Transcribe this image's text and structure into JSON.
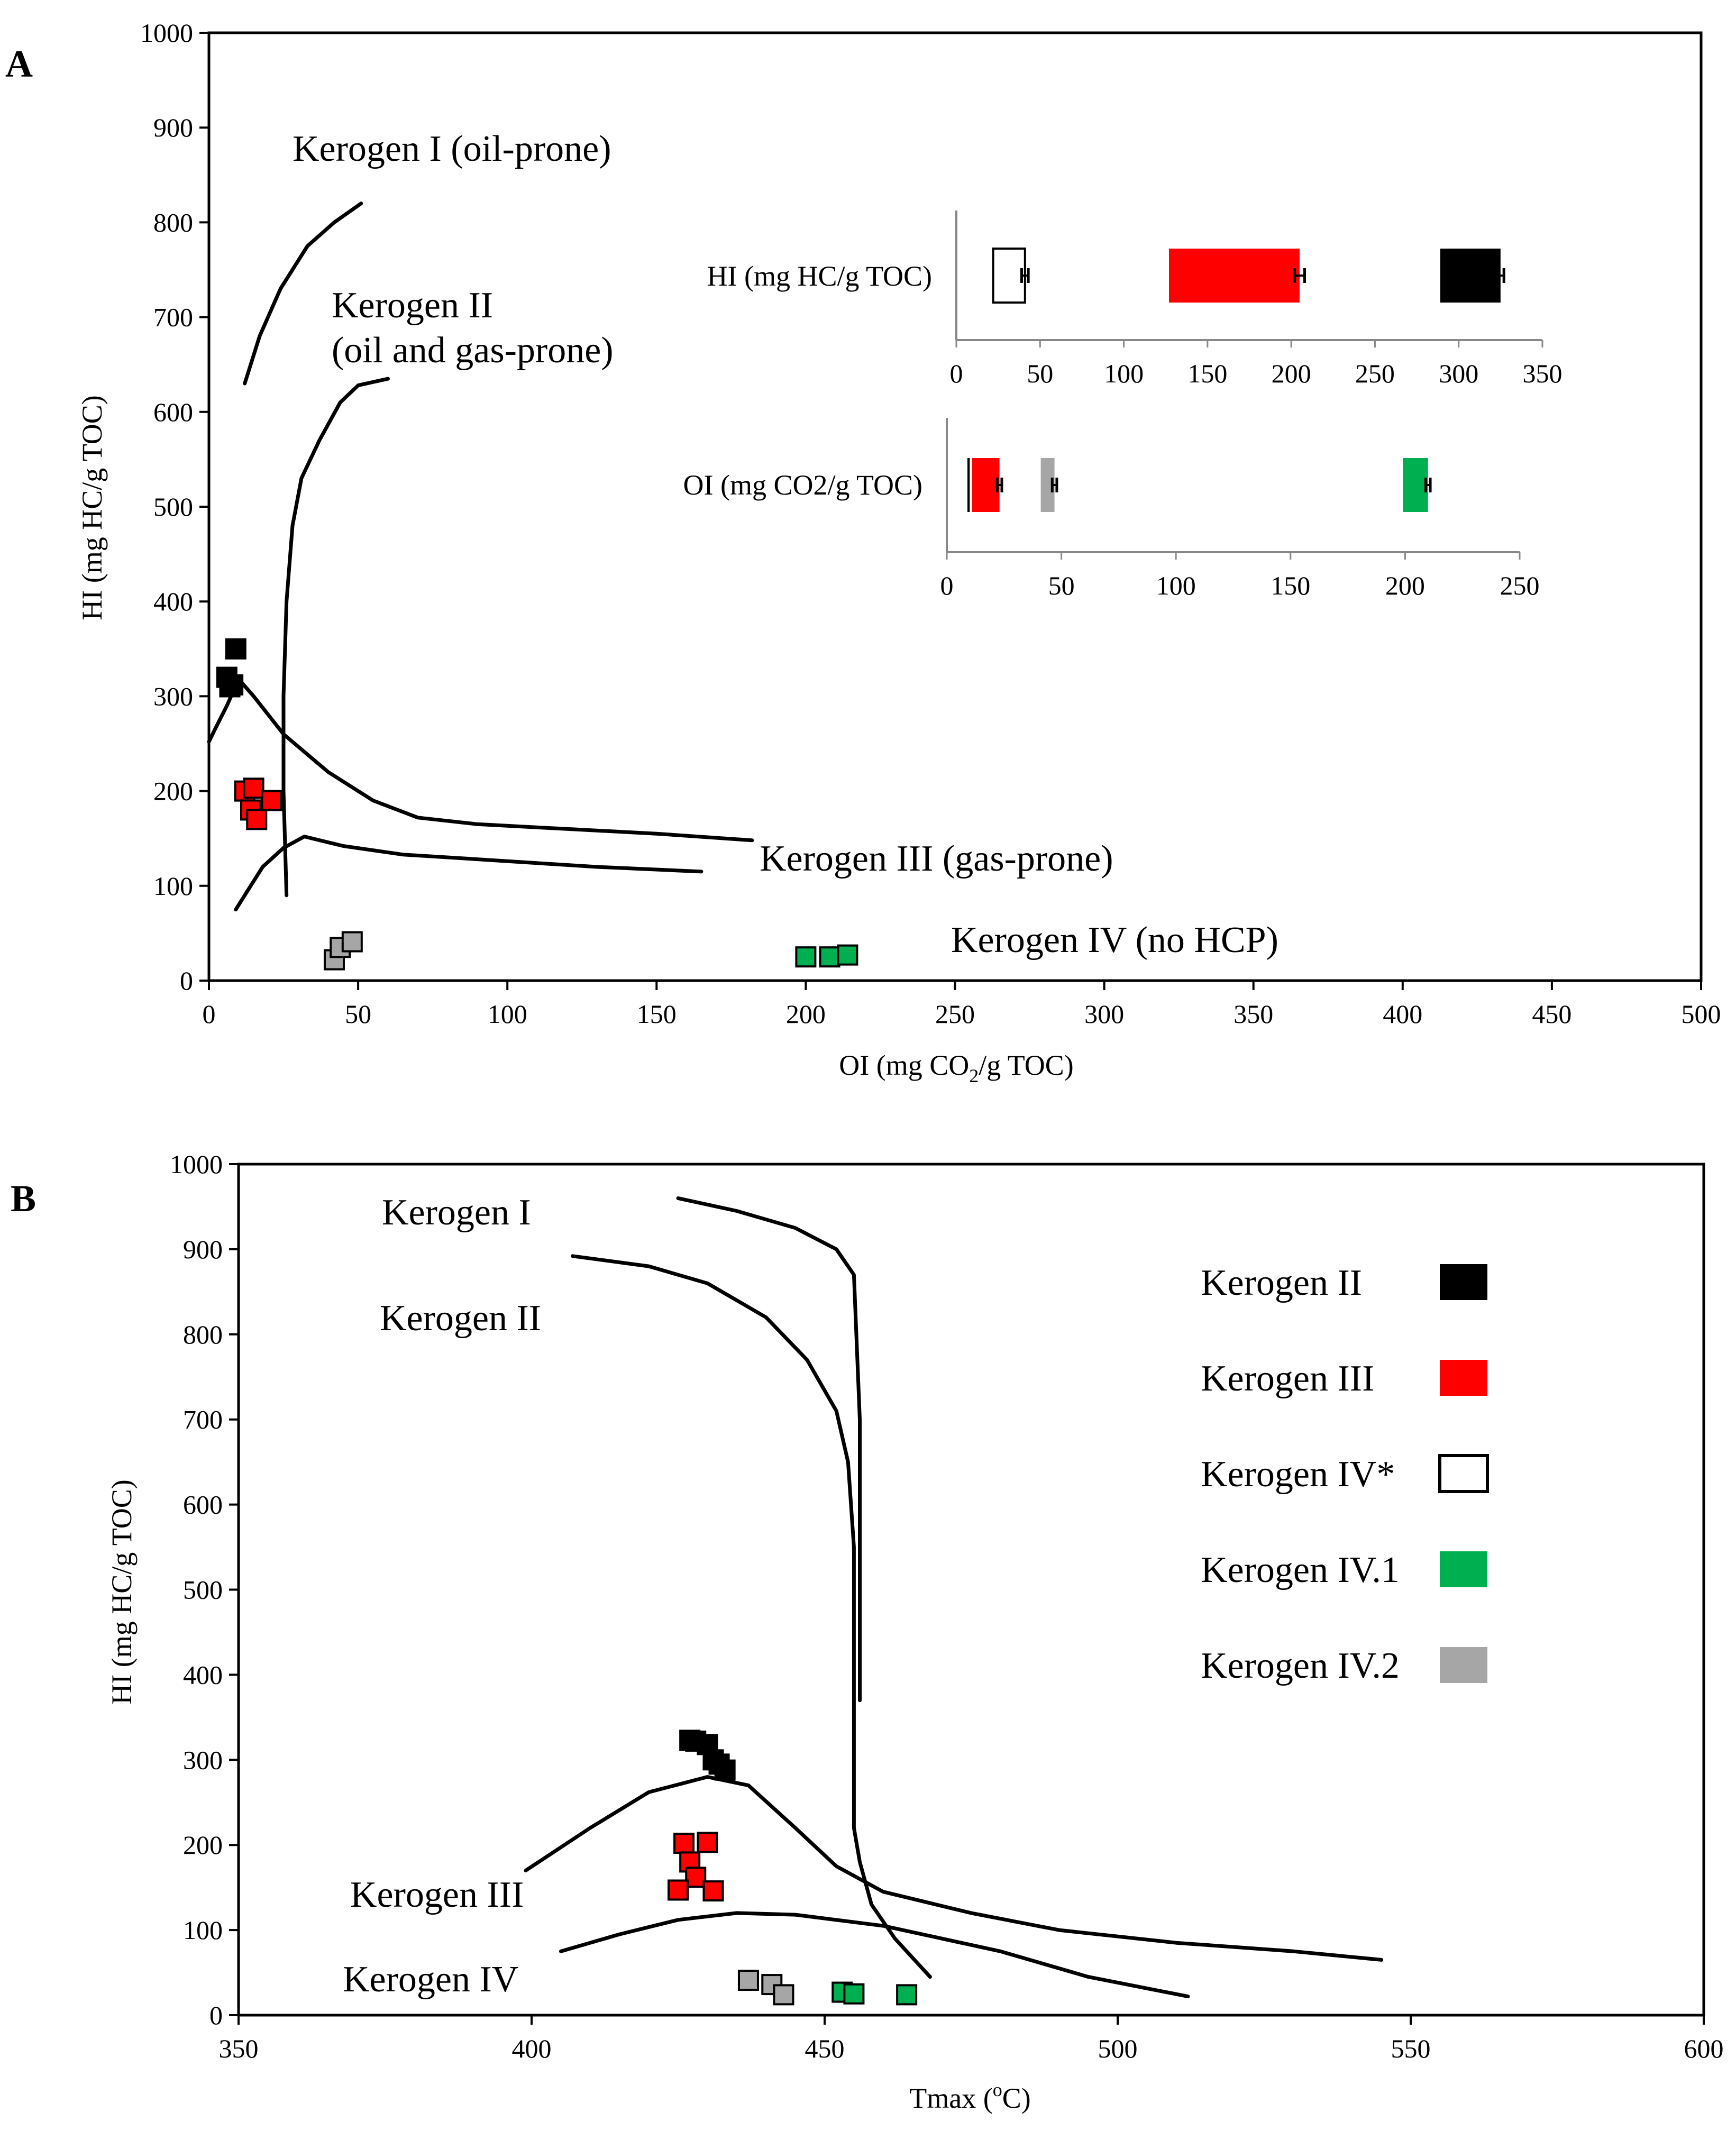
{
  "colors": {
    "kerogen_ii": "#000000",
    "kerogen_iii": "#ff0000",
    "kerogen_iv_star": "#ffffff",
    "kerogen_iv_1": "#00b050",
    "kerogen_iv_2": "#a6a6a6",
    "curve": "#000000"
  },
  "chart_data": [
    {
      "panel": "A",
      "type": "scatter",
      "title": "",
      "xlabel": "OI  (mg CO2/g TOC)",
      "xlabel_parts": {
        "pre": "OI  (mg CO",
        "sub": "2",
        "post": "/g TOC)"
      },
      "ylabel": "HI (mg HC/g TOC)",
      "xlim": [
        0,
        500
      ],
      "ylim": [
        0,
        1000
      ],
      "xticks": [
        0,
        50,
        100,
        150,
        200,
        250,
        300,
        350,
        400,
        450,
        500
      ],
      "yticks": [
        0,
        100,
        200,
        300,
        400,
        500,
        600,
        700,
        800,
        900,
        1000
      ],
      "grid": false,
      "series": [
        {
          "name": "Kerogen II",
          "color": "#000000",
          "points": [
            [
              9,
              350
            ],
            [
              6,
              320
            ],
            [
              8,
              312
            ],
            [
              7,
              310
            ]
          ]
        },
        {
          "name": "Kerogen III",
          "color": "#ff0000",
          "points": [
            [
              12,
              200
            ],
            [
              15,
              203
            ],
            [
              21,
              190
            ],
            [
              14,
              180
            ],
            [
              16,
              170
            ]
          ]
        },
        {
          "name": "Kerogen IV.1",
          "color": "#00b050",
          "points": [
            [
              200,
              25
            ],
            [
              208,
              25
            ],
            [
              214,
              27
            ]
          ]
        },
        {
          "name": "Kerogen IV.2",
          "color": "#a6a6a6",
          "points": [
            [
              42,
              22
            ],
            [
              44,
              35
            ],
            [
              48,
              41
            ]
          ]
        }
      ],
      "curves": [
        {
          "name": "Kerogen I boundary",
          "points": [
            [
              12,
              630
            ],
            [
              17,
              680
            ],
            [
              24,
              730
            ],
            [
              33,
              775
            ],
            [
              42,
              800
            ],
            [
              51,
              820
            ]
          ]
        },
        {
          "name": "Kerogen II boundary",
          "points": [
            [
              26,
              90
            ],
            [
              25,
              200
            ],
            [
              25,
              300
            ],
            [
              26,
              400
            ],
            [
              28,
              480
            ],
            [
              31,
              530
            ],
            [
              37,
              570
            ],
            [
              44,
              610
            ],
            [
              50,
              628
            ],
            [
              60,
              635
            ]
          ]
        },
        {
          "name": "Kerogen II-III upper boundary",
          "points": [
            [
              0,
              252
            ],
            [
              2,
              265
            ],
            [
              6,
              290
            ],
            [
              10,
              318
            ],
            [
              15,
              300
            ],
            [
              25,
              260
            ],
            [
              40,
              220
            ],
            [
              55,
              190
            ],
            [
              70,
              172
            ],
            [
              90,
              165
            ],
            [
              120,
              160
            ],
            [
              150,
              155
            ],
            [
              182,
              148
            ]
          ]
        },
        {
          "name": "Kerogen III lower boundary",
          "points": [
            [
              9,
              75
            ],
            [
              12,
              90
            ],
            [
              18,
              120
            ],
            [
              25,
              140
            ],
            [
              32,
              152
            ],
            [
              45,
              142
            ],
            [
              65,
              133
            ],
            [
              90,
              128
            ],
            [
              130,
              120
            ],
            [
              165,
              115
            ]
          ]
        }
      ],
      "annotations": [
        {
          "text": "Kerogen I (oil-prone)"
        },
        {
          "text": "Kerogen II"
        },
        {
          "text": "(oil and gas-prone)"
        },
        {
          "text": "Kerogen III (gas-prone)"
        },
        {
          "text": "Kerogen IV (no HCP)"
        }
      ],
      "insets": [
        {
          "type": "bar",
          "orientation": "horizontal",
          "category": "HI  (mg HC/g TOC)",
          "xlim": [
            0,
            350
          ],
          "xticks": [
            0,
            50,
            100,
            150,
            200,
            250,
            300,
            350
          ],
          "bars": [
            {
              "group": "Kerogen IV*",
              "start": 22,
              "end": 41,
              "err": 2,
              "color": "#ffffff"
            },
            {
              "group": "Kerogen III",
              "start": 127,
              "end": 205,
              "err": 3,
              "color": "#ff0000"
            },
            {
              "group": "Kerogen II",
              "start": 289,
              "end": 325,
              "err": 2,
              "color": "#000000"
            }
          ]
        },
        {
          "type": "bar",
          "orientation": "horizontal",
          "category": "OI (mg CO2/g TOC)",
          "xlim": [
            0,
            250
          ],
          "xticks": [
            0,
            50,
            100,
            150,
            200,
            250
          ],
          "bars": [
            {
              "group": "Kerogen II",
              "start": 9,
              "end": 10,
              "err": 0,
              "color": "#000000"
            },
            {
              "group": "Kerogen III",
              "start": 11,
              "end": 23,
              "err": 1,
              "color": "#ff0000"
            },
            {
              "group": "Kerogen IV.2",
              "start": 41,
              "end": 47,
              "err": 1,
              "color": "#a6a6a6"
            },
            {
              "group": "Kerogen IV.1",
              "start": 199,
              "end": 210,
              "err": 1,
              "color": "#00b050"
            }
          ]
        }
      ]
    },
    {
      "panel": "B",
      "type": "scatter",
      "title": "",
      "xlabel": "Tmax (°C)",
      "xlabel_parts": {
        "pre": "Tmax (",
        "sup": "o",
        "post": "C)"
      },
      "ylabel": "HI (mg HC/g TOC)",
      "xlim": [
        350,
        600
      ],
      "ylim": [
        0,
        1000
      ],
      "xticks": [
        350,
        400,
        450,
        500,
        550,
        600
      ],
      "yticks": [
        0,
        100,
        200,
        300,
        400,
        500,
        600,
        700,
        800,
        900,
        1000
      ],
      "grid": false,
      "legend": {
        "location": "right",
        "entries": [
          {
            "label": "Kerogen II",
            "color": "#000000"
          },
          {
            "label": "Kerogen III",
            "color": "#ff0000"
          },
          {
            "label": "Kerogen IV*",
            "color": "#ffffff"
          },
          {
            "label": "Kerogen IV.1",
            "color": "#00b050"
          },
          {
            "label": "Kerogen IV.2",
            "color": "#a6a6a6"
          }
        ]
      },
      "series": [
        {
          "name": "Kerogen II",
          "color": "#000000",
          "points": [
            [
              427,
              323
            ],
            [
              428,
              322
            ],
            [
              430,
              318
            ],
            [
              431,
              300
            ],
            [
              432,
              295
            ],
            [
              433,
              288
            ]
          ]
        },
        {
          "name": "Kerogen III",
          "color": "#ff0000",
          "points": [
            [
              426,
              202
            ],
            [
              430,
              203
            ],
            [
              427,
              180
            ],
            [
              428,
              162
            ],
            [
              425,
              147
            ],
            [
              431,
              146
            ]
          ]
        },
        {
          "name": "Kerogen IV.1",
          "color": "#00b050",
          "points": [
            [
              453,
              27
            ],
            [
              455,
              25
            ],
            [
              464,
              24
            ]
          ]
        },
        {
          "name": "Kerogen IV.2",
          "color": "#a6a6a6",
          "points": [
            [
              437,
              41
            ],
            [
              441,
              36
            ],
            [
              443,
              24
            ]
          ]
        }
      ],
      "curves": [
        {
          "name": "Kerogen I boundary",
          "points": [
            [
              425,
              960
            ],
            [
              435,
              945
            ],
            [
              445,
              925
            ],
            [
              452,
              900
            ],
            [
              455,
              870
            ],
            [
              456,
              700
            ],
            [
              456,
              500
            ],
            [
              456,
              370
            ]
          ]
        },
        {
          "name": "Kerogen II boundary",
          "points": [
            [
              407,
              892
            ],
            [
              420,
              880
            ],
            [
              430,
              860
            ],
            [
              440,
              820
            ],
            [
              447,
              770
            ],
            [
              452,
              710
            ],
            [
              454,
              650
            ],
            [
              455,
              550
            ],
            [
              455,
              420
            ],
            [
              455,
              300
            ],
            [
              455,
              220
            ],
            [
              456,
              180
            ],
            [
              458,
              130
            ],
            [
              462,
              90
            ],
            [
              468,
              45
            ]
          ]
        },
        {
          "name": "Kerogen III boundary",
          "points": [
            [
              399,
              170
            ],
            [
              410,
              220
            ],
            [
              420,
              262
            ],
            [
              430,
              280
            ],
            [
              437,
              270
            ],
            [
              445,
              220
            ],
            [
              452,
              175
            ],
            [
              460,
              145
            ],
            [
              475,
              120
            ],
            [
              490,
              100
            ],
            [
              510,
              85
            ],
            [
              530,
              75
            ],
            [
              545,
              65
            ]
          ]
        },
        {
          "name": "Kerogen IV boundary",
          "points": [
            [
              405,
              75
            ],
            [
              415,
              95
            ],
            [
              425,
              112
            ],
            [
              435,
              120
            ],
            [
              445,
              118
            ],
            [
              460,
              105
            ],
            [
              480,
              75
            ],
            [
              495,
              45
            ],
            [
              512,
              22
            ]
          ]
        }
      ],
      "annotations": [
        {
          "text": "Kerogen I"
        },
        {
          "text": "Kerogen II"
        },
        {
          "text": "Kerogen III"
        },
        {
          "text": "Kerogen IV"
        }
      ]
    }
  ]
}
